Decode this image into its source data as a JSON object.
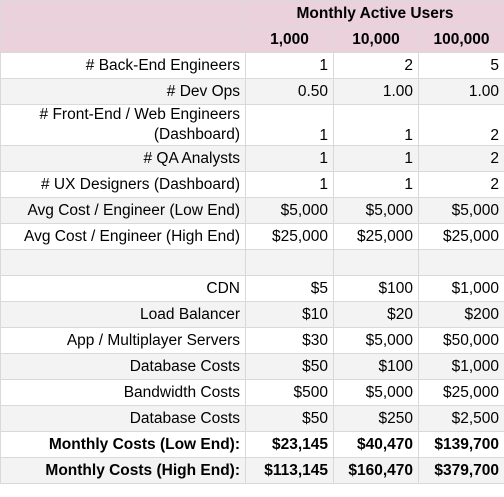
{
  "table": {
    "group_header": "Monthly Active Users",
    "columns": [
      "1,000",
      "10,000",
      "100,000"
    ],
    "rows": [
      [
        "# Back-End Engineers",
        "1",
        "2",
        "5"
      ],
      [
        "# Dev Ops",
        "0.50",
        "1.00",
        "1.00"
      ],
      [
        "# Front-End / Web Engineers (Dashboard)",
        "1",
        "1",
        "2"
      ],
      [
        "# QA Analysts",
        "1",
        "1",
        "2"
      ],
      [
        "# UX Designers (Dashboard)",
        "1",
        "1",
        "2"
      ],
      [
        "Avg Cost / Engineer (Low End)",
        "$5,000",
        "$5,000",
        "$5,000"
      ],
      [
        "Avg Cost / Engineer (High End)",
        "$25,000",
        "$25,000",
        "$25,000"
      ],
      [
        "CDN",
        "$5",
        "$100",
        "$1,000"
      ],
      [
        "Load Balancer",
        "$10",
        "$20",
        "$200"
      ],
      [
        "App / Multiplayer Servers",
        "$30",
        "$5,000",
        "$50,000"
      ],
      [
        "Database Costs",
        "$50",
        "$100",
        "$1,000"
      ],
      [
        "Bandwidth Costs",
        "$500",
        "$5,000",
        "$25,000"
      ],
      [
        "Database Costs",
        "$50",
        "$250",
        "$2,500"
      ],
      [
        "Monthly Costs (Low End):",
        "$23,145",
        "$40,470",
        "$139,700"
      ],
      [
        "Monthly Costs (High End):",
        "$113,145",
        "$160,470",
        "$379,700"
      ]
    ]
  }
}
